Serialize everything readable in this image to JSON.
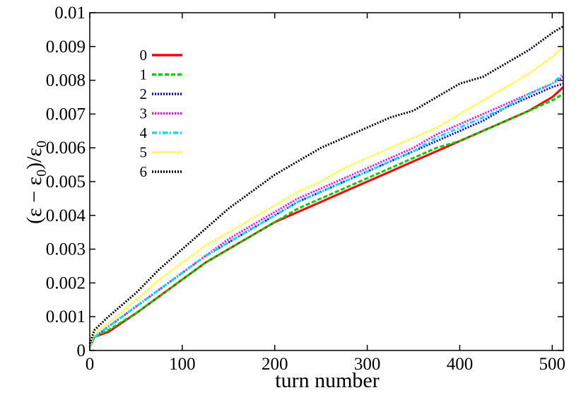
{
  "chart_data": {
    "type": "line",
    "xlabel": "turn number",
    "ylabel": "(ε − ε0)/ε0",
    "ylabel_parts": {
      "open": "(ε − ε",
      "sub1": "0",
      "mid": ")/ε",
      "sub2": "0"
    },
    "xlim": [
      0,
      512
    ],
    "ylim": [
      0,
      0.01
    ],
    "x_ticks": [
      0,
      100,
      200,
      300,
      400,
      500
    ],
    "x_tick_labels": [
      "0",
      "100",
      "200",
      "300",
      "400",
      "500"
    ],
    "y_ticks": [
      0,
      0.001,
      0.002,
      0.003,
      0.004,
      0.005,
      0.006,
      0.007,
      0.008,
      0.009,
      0.01
    ],
    "y_tick_labels": [
      "0",
      "0.001",
      "0.002",
      "0.003",
      "0.004",
      "0.005",
      "0.006",
      "0.007",
      "0.008",
      "0.009",
      "0.01"
    ],
    "grid": false,
    "legend_position": "top-left",
    "series": [
      {
        "name": "0",
        "color": "#ff0000",
        "dash": "solid",
        "x": [
          0,
          5,
          20,
          50,
          75,
          100,
          125,
          150,
          175,
          200,
          225,
          250,
          275,
          300,
          325,
          350,
          375,
          400,
          425,
          450,
          475,
          500,
          512
        ],
        "y": [
          0.0001,
          0.0004,
          0.00055,
          0.0011,
          0.0016,
          0.0021,
          0.0026,
          0.003,
          0.0034,
          0.0038,
          0.0041,
          0.0044,
          0.0047,
          0.005,
          0.0053,
          0.0056,
          0.0059,
          0.0062,
          0.0065,
          0.0068,
          0.0071,
          0.0075,
          0.0078
        ]
      },
      {
        "name": "1",
        "color": "#00d000",
        "dash": "dashed",
        "x": [
          0,
          5,
          20,
          50,
          75,
          100,
          125,
          150,
          175,
          200,
          225,
          250,
          275,
          300,
          325,
          350,
          375,
          400,
          425,
          450,
          475,
          500,
          512
        ],
        "y": [
          0.0001,
          0.0004,
          0.0006,
          0.0011,
          0.0016,
          0.0021,
          0.0026,
          0.003,
          0.0034,
          0.0038,
          0.0042,
          0.0045,
          0.0048,
          0.0051,
          0.0054,
          0.0057,
          0.006,
          0.0062,
          0.0065,
          0.0068,
          0.0071,
          0.0074,
          0.0076
        ]
      },
      {
        "name": "2",
        "color": "#0000ff",
        "dash": "dotted",
        "x": [
          0,
          5,
          20,
          50,
          75,
          100,
          125,
          150,
          175,
          200,
          225,
          250,
          275,
          300,
          325,
          350,
          375,
          400,
          425,
          450,
          475,
          500,
          512
        ],
        "y": [
          0.0001,
          0.0004,
          0.0007,
          0.0013,
          0.0018,
          0.0023,
          0.0028,
          0.0032,
          0.0036,
          0.004,
          0.0044,
          0.0047,
          0.005,
          0.0053,
          0.0056,
          0.0059,
          0.0062,
          0.0065,
          0.0068,
          0.0072,
          0.0075,
          0.0078,
          0.0079
        ]
      },
      {
        "name": "3",
        "color": "#ff00ff",
        "dash": "dotted",
        "x": [
          0,
          5,
          20,
          50,
          75,
          100,
          125,
          150,
          175,
          200,
          225,
          250,
          275,
          300,
          325,
          350,
          375,
          400,
          425,
          450,
          475,
          500,
          512
        ],
        "y": [
          0.0001,
          0.0004,
          0.0007,
          0.0013,
          0.0018,
          0.0023,
          0.0028,
          0.0033,
          0.0037,
          0.0041,
          0.0045,
          0.0048,
          0.0051,
          0.0054,
          0.0057,
          0.006,
          0.0064,
          0.0067,
          0.007,
          0.0073,
          0.0076,
          0.0079,
          0.0081
        ]
      },
      {
        "name": "4",
        "color": "#00e0ff",
        "dash": "dashdot",
        "x": [
          0,
          5,
          20,
          50,
          75,
          100,
          125,
          150,
          175,
          200,
          225,
          250,
          275,
          300,
          325,
          350,
          375,
          400,
          425,
          450,
          475,
          500,
          512
        ],
        "y": [
          0.0001,
          0.0004,
          0.0007,
          0.0013,
          0.0018,
          0.0023,
          0.0028,
          0.0032,
          0.0036,
          0.004,
          0.0044,
          0.0047,
          0.005,
          0.0053,
          0.0056,
          0.0059,
          0.0063,
          0.0066,
          0.0069,
          0.0072,
          0.0076,
          0.0079,
          0.0082
        ]
      },
      {
        "name": "5",
        "color": "#ffff00",
        "dash": "dotted",
        "x": [
          0,
          5,
          20,
          50,
          75,
          100,
          125,
          150,
          175,
          200,
          225,
          250,
          275,
          300,
          325,
          350,
          375,
          400,
          425,
          450,
          475,
          500,
          512
        ],
        "y": [
          0.0001,
          0.0005,
          0.0008,
          0.0015,
          0.0021,
          0.0026,
          0.0031,
          0.0035,
          0.0039,
          0.0043,
          0.0047,
          0.005,
          0.0054,
          0.0057,
          0.006,
          0.0063,
          0.0066,
          0.007,
          0.0074,
          0.0078,
          0.0082,
          0.0087,
          0.009
        ]
      },
      {
        "name": "6",
        "color": "#000000",
        "dash": "dotted",
        "x": [
          0,
          5,
          20,
          50,
          75,
          100,
          125,
          150,
          175,
          200,
          225,
          250,
          275,
          300,
          325,
          350,
          375,
          400,
          425,
          450,
          475,
          500,
          512
        ],
        "y": [
          0.0002,
          0.0006,
          0.001,
          0.0017,
          0.0024,
          0.003,
          0.0036,
          0.0042,
          0.0047,
          0.0052,
          0.0056,
          0.006,
          0.0063,
          0.0066,
          0.0069,
          0.0071,
          0.0075,
          0.0079,
          0.0081,
          0.0085,
          0.0089,
          0.0094,
          0.0096
        ]
      }
    ]
  }
}
